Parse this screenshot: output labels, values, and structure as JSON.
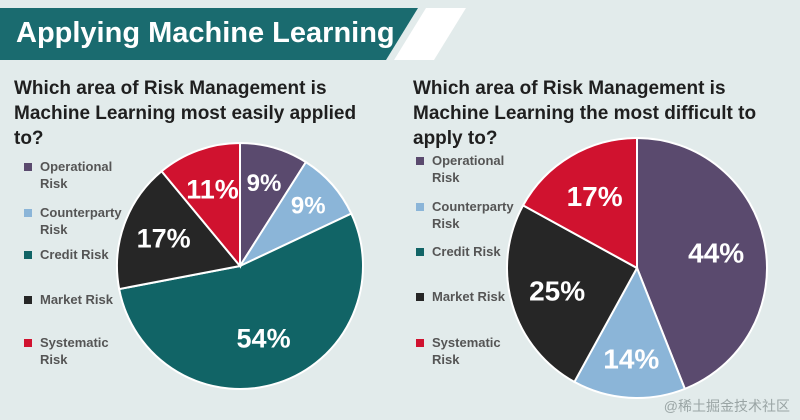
{
  "banner": {
    "title": "Applying Machine Learning",
    "bg_color": "#1a6b6f",
    "stripe_color": "#ffffff"
  },
  "watermark": "@稀土掘金技术社区",
  "colors": {
    "Operational Risk": "#5a4a6e",
    "Counterparty Risk": "#8bb5d8",
    "Credit Risk": "#116466",
    "Market Risk": "#262626",
    "Systematic Risk": "#d0122f"
  },
  "chart_data": [
    {
      "type": "pie",
      "title": "Which area of Risk Management is Machine Learning most easily applied to?",
      "legend_position": "left",
      "categories": [
        "Operational Risk",
        "Counterparty Risk",
        "Credit Risk",
        "Market Risk",
        "Systematic Risk"
      ],
      "legend": [
        {
          "line1": "Operational",
          "line2": "Risk",
          "category": "Operational Risk"
        },
        {
          "line1": "Counterparty",
          "line2": "Risk",
          "category": "Counterparty Risk"
        },
        {
          "line1": "Credit Risk",
          "line2": "",
          "category": "Credit Risk"
        },
        {
          "line1": "Market Risk",
          "line2": "",
          "category": "Market Risk"
        },
        {
          "line1": "Systematic",
          "line2": "Risk",
          "category": "Systematic Risk"
        }
      ],
      "slices": [
        {
          "category": "Operational Risk",
          "value": 9,
          "label": "9%"
        },
        {
          "category": "Counterparty Risk",
          "value": 9,
          "label": "9%"
        },
        {
          "category": "Credit Risk",
          "value": 54,
          "label": "54%"
        },
        {
          "category": "Market Risk",
          "value": 17,
          "label": "17%"
        },
        {
          "category": "Systematic Risk",
          "value": 11,
          "label": "11%"
        }
      ]
    },
    {
      "type": "pie",
      "title": "Which area of Risk Management is Machine Learning the most difficult to apply to?",
      "legend_position": "left",
      "categories": [
        "Operational Risk",
        "Counterparty Risk",
        "Credit Risk",
        "Market Risk",
        "Systematic Risk"
      ],
      "legend": [
        {
          "line1": "Operational",
          "line2": "Risk",
          "category": "Operational Risk"
        },
        {
          "line1": "Counterparty",
          "line2": "Risk",
          "category": "Counterparty Risk"
        },
        {
          "line1": "Credit Risk",
          "line2": "",
          "category": "Credit Risk"
        },
        {
          "line1": "Market Risk",
          "line2": "",
          "category": "Market Risk"
        },
        {
          "line1": "Systematic",
          "line2": "Risk",
          "category": "Systematic Risk"
        }
      ],
      "slices": [
        {
          "category": "Operational Risk",
          "value": 44,
          "label": "44%"
        },
        {
          "category": "Counterparty Risk",
          "value": 14,
          "label": "14%"
        },
        {
          "category": "Market Risk",
          "value": 25,
          "label": "25%"
        },
        {
          "category": "Systematic Risk",
          "value": 17,
          "label": "17%"
        }
      ]
    }
  ]
}
